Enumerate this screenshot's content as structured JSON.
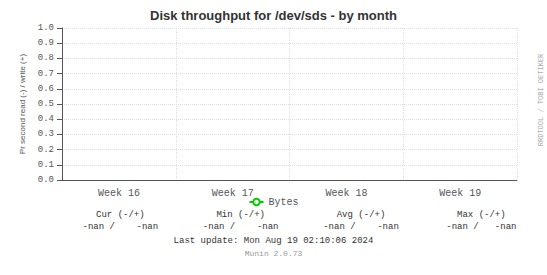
{
  "chart_data": {
    "type": "line",
    "title": "Disk throughput for /dev/sds - by month",
    "ylabel": "Pr second read (-) / write (+)",
    "categories": [
      "Week 16",
      "Week 17",
      "Week 18",
      "Week 19"
    ],
    "series": [
      {
        "name": "Bytes",
        "color": "#00cc00",
        "values": [
          null,
          null,
          null,
          null
        ]
      }
    ],
    "ylim": [
      0.0,
      1.0
    ],
    "yticks": [
      {
        "value": 0,
        "label": "0.0"
      },
      0.1,
      0.2,
      0.3,
      0.4,
      0.5,
      0.6,
      0.7,
      0.8,
      0.9,
      {
        "value": 1,
        "label": "1.0"
      }
    ],
    "grid": true,
    "legend": "bottom",
    "annotations": [
      "Cur (-/+)",
      "Min (-/+)",
      "Avg (-/+)",
      "Max (-/+)",
      "-nan /    -nan",
      "-nan /    -nan",
      "-nan /    -nan",
      "-nan /   -nan",
      "Last update: Mon Aug 19 02:10:06 2024",
      "Munin 2.0.73",
      "RRDTOOL / TOBI OETIKER"
    ]
  }
}
